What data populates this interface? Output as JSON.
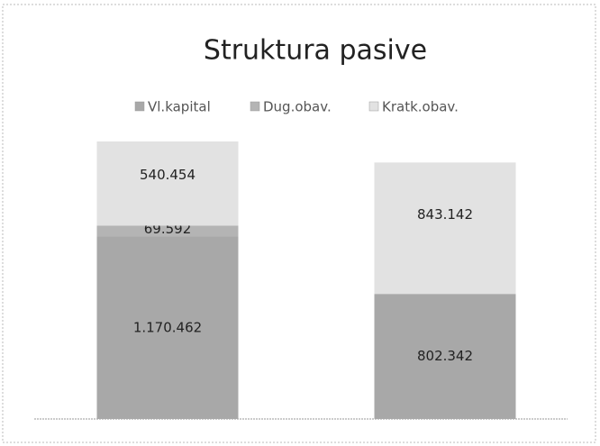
{
  "chart_data": {
    "type": "stacked_bar",
    "title": "Struktura pasive",
    "categories": [
      null,
      null
    ],
    "series": [
      {
        "name": "Vl.kapital",
        "color": "#a8a8a8",
        "values": [
          1170462,
          802342
        ],
        "value_labels": [
          "1.170.462",
          "802.342"
        ]
      },
      {
        "name": "Dug.obav.",
        "color": "#b4b4b4",
        "values": [
          69592,
          0
        ],
        "value_labels": [
          "69.592",
          null
        ]
      },
      {
        "name": "Kratk.obav.",
        "color": "#e2e2e2",
        "values": [
          540454,
          843142
        ],
        "value_labels": [
          "540.454",
          "843.142"
        ]
      }
    ],
    "legend": "top"
  }
}
